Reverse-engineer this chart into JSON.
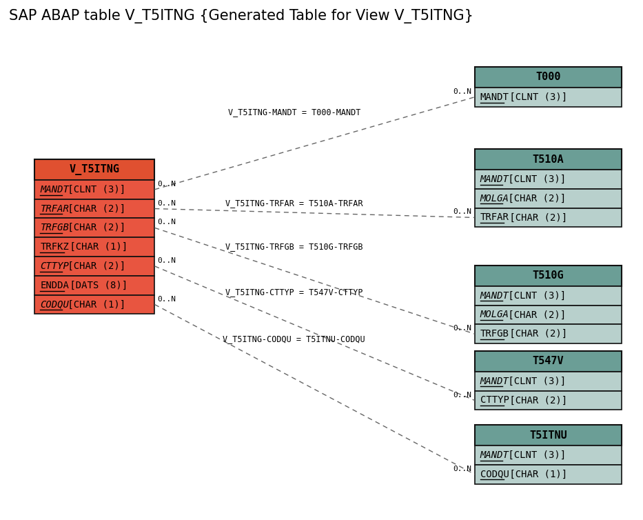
{
  "title": "SAP ABAP table V_T5ITNG {Generated Table for View V_T5ITNG}",
  "title_fontsize": 15,
  "background_color": "#ffffff",
  "main_table": {
    "name": "V_T5ITNG",
    "header_color": "#e05030",
    "row_color": "#e85540",
    "border_color": "#111111",
    "fields": [
      {
        "text": "MANDT",
        "type": " [CLNT (3)]",
        "italic": true,
        "underline": true
      },
      {
        "text": "TRFAR",
        "type": " [CHAR (2)]",
        "italic": true,
        "underline": true
      },
      {
        "text": "TRFGB",
        "type": " [CHAR (2)]",
        "italic": true,
        "underline": true
      },
      {
        "text": "TRFKZ",
        "type": " [CHAR (1)]",
        "italic": false,
        "underline": true
      },
      {
        "text": "CTTYP",
        "type": " [CHAR (2)]",
        "italic": true,
        "underline": true
      },
      {
        "text": "ENDDA",
        "type": " [DATS (8)]",
        "italic": false,
        "underline": true
      },
      {
        "text": "CODQU",
        "type": " [CHAR (1)]",
        "italic": true,
        "underline": true
      }
    ]
  },
  "related_tables": [
    {
      "name": "T000",
      "header_color": "#6b9e96",
      "row_color": "#b8d0cc",
      "border_color": "#111111",
      "fields": [
        {
          "text": "MANDT",
          "type": " [CLNT (3)]",
          "italic": false,
          "underline": true
        }
      ]
    },
    {
      "name": "T510A",
      "header_color": "#6b9e96",
      "row_color": "#b8d0cc",
      "border_color": "#111111",
      "fields": [
        {
          "text": "MANDT",
          "type": " [CLNT (3)]",
          "italic": true,
          "underline": true
        },
        {
          "text": "MOLGA",
          "type": " [CHAR (2)]",
          "italic": true,
          "underline": true
        },
        {
          "text": "TRFAR",
          "type": " [CHAR (2)]",
          "italic": false,
          "underline": true
        }
      ]
    },
    {
      "name": "T510G",
      "header_color": "#6b9e96",
      "row_color": "#b8d0cc",
      "border_color": "#111111",
      "fields": [
        {
          "text": "MANDT",
          "type": " [CLNT (3)]",
          "italic": true,
          "underline": true
        },
        {
          "text": "MOLGA",
          "type": " [CHAR (2)]",
          "italic": true,
          "underline": true
        },
        {
          "text": "TRFGB",
          "type": " [CHAR (2)]",
          "italic": false,
          "underline": true
        }
      ]
    },
    {
      "name": "T547V",
      "header_color": "#6b9e96",
      "row_color": "#b8d0cc",
      "border_color": "#111111",
      "fields": [
        {
          "text": "MANDT",
          "type": " [CLNT (3)]",
          "italic": true,
          "underline": true
        },
        {
          "text": "CTTYP",
          "type": " [CHAR (2)]",
          "italic": false,
          "underline": true
        }
      ]
    },
    {
      "name": "T5ITNU",
      "header_color": "#6b9e96",
      "row_color": "#b8d0cc",
      "border_color": "#111111",
      "fields": [
        {
          "text": "MANDT",
          "type": " [CLNT (3)]",
          "italic": true,
          "underline": true
        },
        {
          "text": "CODQU",
          "type": " [CHAR (1)]",
          "italic": false,
          "underline": true
        }
      ]
    }
  ],
  "conn_specs": [
    {
      "from_field": 0,
      "to_table": 0,
      "to_field": 0,
      "label": "V_T5ITNG-MANDT = T000-MANDT"
    },
    {
      "from_field": 1,
      "to_table": 1,
      "to_field": 2,
      "label": "V_T5ITNG-TRFAR = T510A-TRFAR"
    },
    {
      "from_field": 2,
      "to_table": 2,
      "to_field": 2,
      "label": "V_T5ITNG-TRFGB = T510G-TRFGB"
    },
    {
      "from_field": 4,
      "to_table": 3,
      "to_field": 1,
      "label": "V_T5ITNG-CTTYP = T547V-CTTYP"
    },
    {
      "from_field": 6,
      "to_table": 4,
      "to_field": 1,
      "label": "V_T5ITNG-CODQU = T5ITNU-CODQU"
    }
  ]
}
